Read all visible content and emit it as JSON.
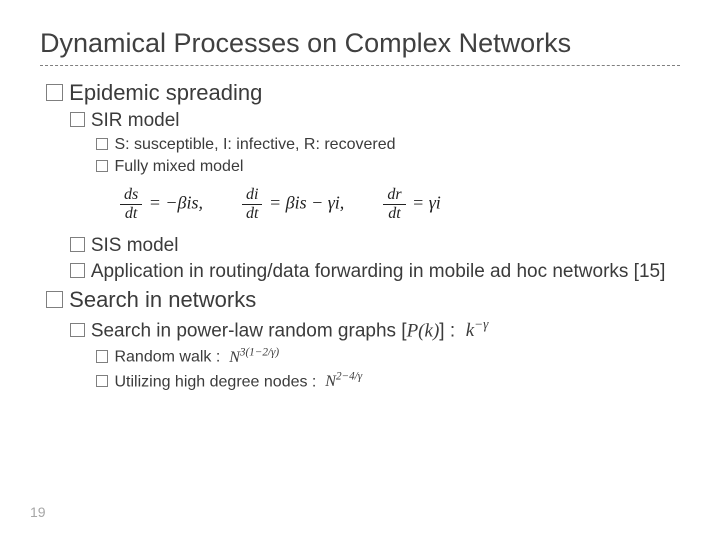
{
  "title": "Dynamical Processes on Complex Networks",
  "epidemic": {
    "heading": "Epidemic spreading",
    "sir": {
      "label": "SIR model",
      "desc": "S: susceptible, I: infective, R: recovered",
      "mixed": "Fully mixed model",
      "equations": {
        "eq1_num": "ds",
        "eq1_den": "dt",
        "eq1_rhs": "= −βis,",
        "eq2_num": "di",
        "eq2_den": "dt",
        "eq2_rhs": "= βis − γi,",
        "eq3_num": "dr",
        "eq3_den": "dt",
        "eq3_rhs": "= γi"
      }
    },
    "sis": {
      "label": "SIS model"
    },
    "application": "Application in routing/data forwarding in mobile ad hoc networks [15]"
  },
  "search": {
    "heading": "Search in networks",
    "powerlaw_prefix": "Search in power-law random graphs [",
    "powerlaw_pk": "P(k)",
    "powerlaw_bracket": "] :",
    "powerlaw_rhs": "k",
    "powerlaw_exp": "−γ",
    "random_walk": "Random walk :",
    "random_walk_math_base": "N",
    "random_walk_math_exp": "3(1−2/γ)",
    "high_degree": "Utilizing high degree nodes :",
    "high_degree_math_base": "N",
    "high_degree_math_exp": "2−4/γ"
  },
  "page_number": "19"
}
